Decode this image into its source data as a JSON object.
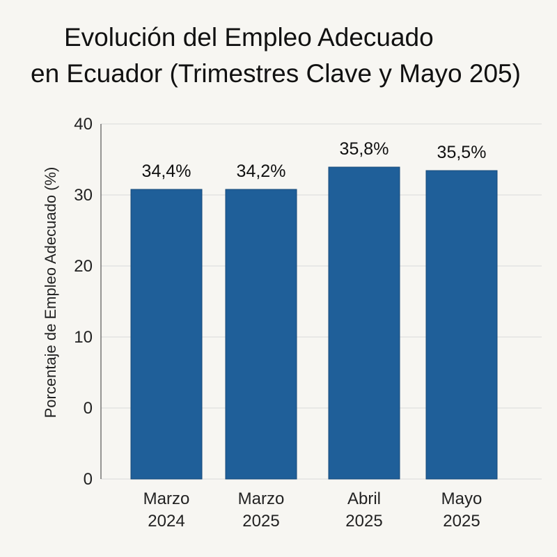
{
  "chart_data": {
    "type": "bar",
    "title_line1": "Evolución del Empleo Adecuado",
    "title_line2": "en Ecuador (Trimestres Clave y Mayo 205)",
    "ylabel": "Porcentaje de Empleo Adecuado (%)",
    "xlabel": "",
    "y_tick_labels": [
      "0",
      "0",
      "10",
      "20",
      "30",
      "40"
    ],
    "categories": [
      [
        "Marzo",
        "2024"
      ],
      [
        "Marzo",
        "2025"
      ],
      [
        "Abril",
        "2025"
      ],
      [
        "Mayo",
        "2025"
      ]
    ],
    "values": [
      34.4,
      34.2,
      35.8,
      35.5
    ],
    "data_labels": [
      "34,4%",
      "34,2%",
      "35,8%",
      "35,5%"
    ],
    "grid": true,
    "colors": {
      "bar": "#1f5f99",
      "grid": "#d9d9d9",
      "axis": "#555555",
      "background": "#f7f6f2"
    }
  }
}
